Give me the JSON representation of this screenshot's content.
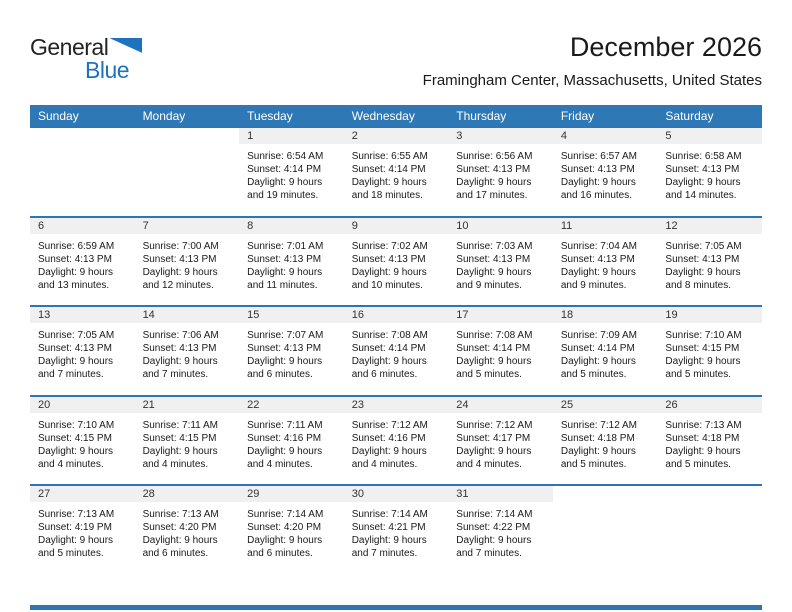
{
  "logo": {
    "line1": "General",
    "line2": "Blue"
  },
  "title": "December 2026",
  "subtitle": "Framingham Center, Massachusetts, United States",
  "weekdays": [
    "Sunday",
    "Monday",
    "Tuesday",
    "Wednesday",
    "Thursday",
    "Friday",
    "Saturday"
  ],
  "colors": {
    "header_blue": "#2F78B6",
    "separator_blue": "#2E75B5",
    "logo_blue": "#1E73BE",
    "band_gray": "#F0F0F0"
  },
  "weeks": [
    [
      null,
      null,
      {
        "day": "1",
        "lines": [
          "Sunrise: 6:54 AM",
          "Sunset: 4:14 PM",
          "Daylight: 9 hours",
          "and 19 minutes."
        ]
      },
      {
        "day": "2",
        "lines": [
          "Sunrise: 6:55 AM",
          "Sunset: 4:14 PM",
          "Daylight: 9 hours",
          "and 18 minutes."
        ]
      },
      {
        "day": "3",
        "lines": [
          "Sunrise: 6:56 AM",
          "Sunset: 4:13 PM",
          "Daylight: 9 hours",
          "and 17 minutes."
        ]
      },
      {
        "day": "4",
        "lines": [
          "Sunrise: 6:57 AM",
          "Sunset: 4:13 PM",
          "Daylight: 9 hours",
          "and 16 minutes."
        ]
      },
      {
        "day": "5",
        "lines": [
          "Sunrise: 6:58 AM",
          "Sunset: 4:13 PM",
          "Daylight: 9 hours",
          "and 14 minutes."
        ]
      }
    ],
    [
      {
        "day": "6",
        "lines": [
          "Sunrise: 6:59 AM",
          "Sunset: 4:13 PM",
          "Daylight: 9 hours",
          "and 13 minutes."
        ]
      },
      {
        "day": "7",
        "lines": [
          "Sunrise: 7:00 AM",
          "Sunset: 4:13 PM",
          "Daylight: 9 hours",
          "and 12 minutes."
        ]
      },
      {
        "day": "8",
        "lines": [
          "Sunrise: 7:01 AM",
          "Sunset: 4:13 PM",
          "Daylight: 9 hours",
          "and 11 minutes."
        ]
      },
      {
        "day": "9",
        "lines": [
          "Sunrise: 7:02 AM",
          "Sunset: 4:13 PM",
          "Daylight: 9 hours",
          "and 10 minutes."
        ]
      },
      {
        "day": "10",
        "lines": [
          "Sunrise: 7:03 AM",
          "Sunset: 4:13 PM",
          "Daylight: 9 hours",
          "and 9 minutes."
        ]
      },
      {
        "day": "11",
        "lines": [
          "Sunrise: 7:04 AM",
          "Sunset: 4:13 PM",
          "Daylight: 9 hours",
          "and 9 minutes."
        ]
      },
      {
        "day": "12",
        "lines": [
          "Sunrise: 7:05 AM",
          "Sunset: 4:13 PM",
          "Daylight: 9 hours",
          "and 8 minutes."
        ]
      }
    ],
    [
      {
        "day": "13",
        "lines": [
          "Sunrise: 7:05 AM",
          "Sunset: 4:13 PM",
          "Daylight: 9 hours",
          "and 7 minutes."
        ]
      },
      {
        "day": "14",
        "lines": [
          "Sunrise: 7:06 AM",
          "Sunset: 4:13 PM",
          "Daylight: 9 hours",
          "and 7 minutes."
        ]
      },
      {
        "day": "15",
        "lines": [
          "Sunrise: 7:07 AM",
          "Sunset: 4:13 PM",
          "Daylight: 9 hours",
          "and 6 minutes."
        ]
      },
      {
        "day": "16",
        "lines": [
          "Sunrise: 7:08 AM",
          "Sunset: 4:14 PM",
          "Daylight: 9 hours",
          "and 6 minutes."
        ]
      },
      {
        "day": "17",
        "lines": [
          "Sunrise: 7:08 AM",
          "Sunset: 4:14 PM",
          "Daylight: 9 hours",
          "and 5 minutes."
        ]
      },
      {
        "day": "18",
        "lines": [
          "Sunrise: 7:09 AM",
          "Sunset: 4:14 PM",
          "Daylight: 9 hours",
          "and 5 minutes."
        ]
      },
      {
        "day": "19",
        "lines": [
          "Sunrise: 7:10 AM",
          "Sunset: 4:15 PM",
          "Daylight: 9 hours",
          "and 5 minutes."
        ]
      }
    ],
    [
      {
        "day": "20",
        "lines": [
          "Sunrise: 7:10 AM",
          "Sunset: 4:15 PM",
          "Daylight: 9 hours",
          "and 4 minutes."
        ]
      },
      {
        "day": "21",
        "lines": [
          "Sunrise: 7:11 AM",
          "Sunset: 4:15 PM",
          "Daylight: 9 hours",
          "and 4 minutes."
        ]
      },
      {
        "day": "22",
        "lines": [
          "Sunrise: 7:11 AM",
          "Sunset: 4:16 PM",
          "Daylight: 9 hours",
          "and 4 minutes."
        ]
      },
      {
        "day": "23",
        "lines": [
          "Sunrise: 7:12 AM",
          "Sunset: 4:16 PM",
          "Daylight: 9 hours",
          "and 4 minutes."
        ]
      },
      {
        "day": "24",
        "lines": [
          "Sunrise: 7:12 AM",
          "Sunset: 4:17 PM",
          "Daylight: 9 hours",
          "and 4 minutes."
        ]
      },
      {
        "day": "25",
        "lines": [
          "Sunrise: 7:12 AM",
          "Sunset: 4:18 PM",
          "Daylight: 9 hours",
          "and 5 minutes."
        ]
      },
      {
        "day": "26",
        "lines": [
          "Sunrise: 7:13 AM",
          "Sunset: 4:18 PM",
          "Daylight: 9 hours",
          "and 5 minutes."
        ]
      }
    ],
    [
      {
        "day": "27",
        "lines": [
          "Sunrise: 7:13 AM",
          "Sunset: 4:19 PM",
          "Daylight: 9 hours",
          "and 5 minutes."
        ]
      },
      {
        "day": "28",
        "lines": [
          "Sunrise: 7:13 AM",
          "Sunset: 4:20 PM",
          "Daylight: 9 hours",
          "and 6 minutes."
        ]
      },
      {
        "day": "29",
        "lines": [
          "Sunrise: 7:14 AM",
          "Sunset: 4:20 PM",
          "Daylight: 9 hours",
          "and 6 minutes."
        ]
      },
      {
        "day": "30",
        "lines": [
          "Sunrise: 7:14 AM",
          "Sunset: 4:21 PM",
          "Daylight: 9 hours",
          "and 7 minutes."
        ]
      },
      {
        "day": "31",
        "lines": [
          "Sunrise: 7:14 AM",
          "Sunset: 4:22 PM",
          "Daylight: 9 hours",
          "and 7 minutes."
        ]
      },
      null,
      null
    ]
  ]
}
